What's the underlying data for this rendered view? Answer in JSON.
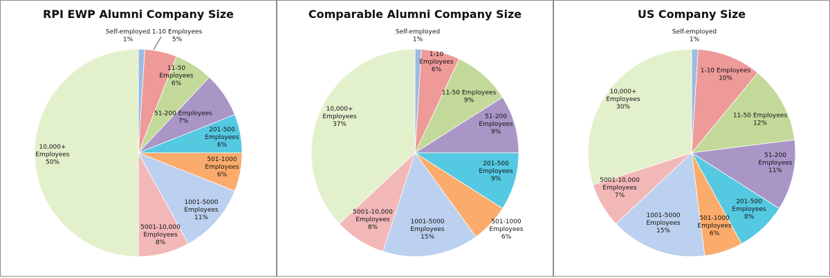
{
  "chart_data": [
    {
      "type": "pie",
      "title": "RPI EWP Alumni Company Size",
      "slices": [
        {
          "label": "Self-employed",
          "value": 1,
          "value_label": "1%",
          "color": "#9bbbe3"
        },
        {
          "label": "1-10 Employees",
          "value": 5,
          "value_label": "5%",
          "color": "#ed9a99"
        },
        {
          "label": "11-50 Employees",
          "value": 6,
          "value_label": "6%",
          "color": "#c3d99a"
        },
        {
          "label": "51-200 Employees",
          "value": 7,
          "value_label": "7%",
          "color": "#a996c6"
        },
        {
          "label": "201-500 Employees",
          "value": 6,
          "value_label": "6%",
          "color": "#55c8e2"
        },
        {
          "label": "501-1000 Employees",
          "value": 6,
          "value_label": "6%",
          "color": "#fbab6b"
        },
        {
          "label": "1001-5000 Employees",
          "value": 11,
          "value_label": "11%",
          "color": "#bcd0ef"
        },
        {
          "label": "5001-10,000 Employees",
          "value": 8,
          "value_label": "8%",
          "color": "#f2b8b8"
        },
        {
          "label": "10,000+ Employees",
          "value": 50,
          "value_label": "50%",
          "color": "#e3f0cc"
        }
      ]
    },
    {
      "type": "pie",
      "title": "Comparable Alumni Company Size",
      "slices": [
        {
          "label": "Self-employed",
          "value": 1,
          "value_label": "1%",
          "color": "#9bbbe3"
        },
        {
          "label": "1-10 Employees",
          "value": 6,
          "value_label": "6%",
          "color": "#ed9a99"
        },
        {
          "label": "11-50 Employees",
          "value": 9,
          "value_label": "9%",
          "color": "#c3d99a"
        },
        {
          "label": "51-200 Employees",
          "value": 9,
          "value_label": "9%",
          "color": "#a996c6"
        },
        {
          "label": "201-500 Employees",
          "value": 9,
          "value_label": "9%",
          "color": "#55c8e2"
        },
        {
          "label": "501-1000 Employees",
          "value": 6,
          "value_label": "6%",
          "color": "#fbab6b"
        },
        {
          "label": "1001-5000 Employees",
          "value": 15,
          "value_label": "15%",
          "color": "#bcd0ef"
        },
        {
          "label": "5001-10,000 Employees",
          "value": 8,
          "value_label": "8%",
          "color": "#f2b8b8"
        },
        {
          "label": "10,000+ Employees",
          "value": 37,
          "value_label": "37%",
          "color": "#e3f0cc"
        }
      ]
    },
    {
      "type": "pie",
      "title": "US Company Size",
      "slices": [
        {
          "label": "Self-employed",
          "value": 1,
          "value_label": "1%",
          "color": "#9bbbe3"
        },
        {
          "label": "1-10 Employees",
          "value": 10,
          "value_label": "10%",
          "color": "#ed9a99"
        },
        {
          "label": "11-50 Employees",
          "value": 12,
          "value_label": "12%",
          "color": "#c3d99a"
        },
        {
          "label": "51-200 Employees",
          "value": 11,
          "value_label": "11%",
          "color": "#a996c6"
        },
        {
          "label": "201-500 Employees",
          "value": 8,
          "value_label": "8%",
          "color": "#55c8e2"
        },
        {
          "label": "501-1000 Employees",
          "value": 6,
          "value_label": "6%",
          "color": "#fbab6b"
        },
        {
          "label": "1001-5000 Employees",
          "value": 15,
          "value_label": "15%",
          "color": "#bcd0ef"
        },
        {
          "label": "5001-10,000 Employees",
          "value": 7,
          "value_label": "7%",
          "color": "#f2b8b8"
        },
        {
          "label": "10,000+ Employees",
          "value": 30,
          "value_label": "30%",
          "color": "#e3f0cc"
        }
      ]
    }
  ]
}
